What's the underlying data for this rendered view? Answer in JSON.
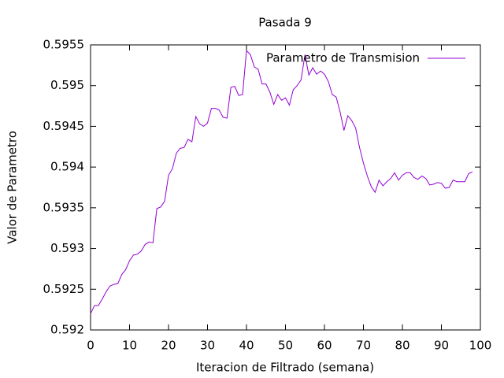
{
  "chart_data": {
    "type": "line",
    "title": "Pasada 9",
    "xlabel": "Iteracion de Filtrado (semana)",
    "ylabel": "Valor de Parametro",
    "x": [
      0,
      1,
      2,
      3,
      4,
      5,
      6,
      7,
      8,
      9,
      10,
      11,
      12,
      13,
      14,
      15,
      16,
      17,
      18,
      19,
      20,
      21,
      22,
      23,
      24,
      25,
      26,
      27,
      28,
      29,
      30,
      31,
      32,
      33,
      34,
      35,
      36,
      37,
      38,
      39,
      40,
      41,
      42,
      43,
      44,
      45,
      46,
      47,
      48,
      49,
      50,
      51,
      52,
      53,
      54,
      55,
      56,
      57,
      58,
      59,
      60,
      61,
      62,
      63,
      64,
      65,
      66,
      67,
      68,
      69,
      70,
      71,
      72,
      73,
      74,
      75,
      76,
      77,
      78,
      79,
      80,
      81,
      82,
      83,
      84,
      85,
      86,
      87,
      88,
      89,
      90,
      91,
      92,
      93,
      94,
      95,
      96,
      97,
      98
    ],
    "series": [
      {
        "name": "Parametro de Transmision",
        "color": "#9400d3",
        "values": [
          0.5922,
          0.5923,
          0.5923,
          0.59238,
          0.59247,
          0.59254,
          0.59256,
          0.59257,
          0.59268,
          0.59274,
          0.59285,
          0.59292,
          0.59293,
          0.59297,
          0.59305,
          0.59308,
          0.59307,
          0.59349,
          0.59351,
          0.59358,
          0.5939,
          0.59398,
          0.59417,
          0.59423,
          0.59424,
          0.59434,
          0.59431,
          0.59462,
          0.59453,
          0.5945,
          0.59454,
          0.59472,
          0.59472,
          0.5947,
          0.59461,
          0.5946,
          0.59498,
          0.59499,
          0.59488,
          0.59489,
          0.59543,
          0.59538,
          0.59523,
          0.5952,
          0.59502,
          0.59502,
          0.59492,
          0.59477,
          0.59489,
          0.59482,
          0.59485,
          0.59476,
          0.59495,
          0.595,
          0.59507,
          0.59538,
          0.59513,
          0.59522,
          0.59514,
          0.59518,
          0.59514,
          0.59505,
          0.59489,
          0.59486,
          0.59468,
          0.59445,
          0.59463,
          0.59457,
          0.59448,
          0.59424,
          0.59405,
          0.59389,
          0.59376,
          0.59369,
          0.59384,
          0.59377,
          0.59382,
          0.59386,
          0.59393,
          0.59384,
          0.5939,
          0.59393,
          0.59393,
          0.59387,
          0.59385,
          0.59389,
          0.59386,
          0.59378,
          0.59379,
          0.59381,
          0.5938,
          0.59374,
          0.59375,
          0.59384,
          0.59382,
          0.59382,
          0.59382,
          0.59392,
          0.59394
        ]
      }
    ],
    "xlim": [
      0,
      100
    ],
    "xticks": [
      0,
      10,
      20,
      30,
      40,
      50,
      60,
      70,
      80,
      90,
      100
    ],
    "ylim": [
      0.592,
      0.5955
    ],
    "yticks": [
      0.592,
      0.5925,
      0.593,
      0.5935,
      0.594,
      0.5945,
      0.595,
      0.5955
    ],
    "legend": "top right"
  }
}
